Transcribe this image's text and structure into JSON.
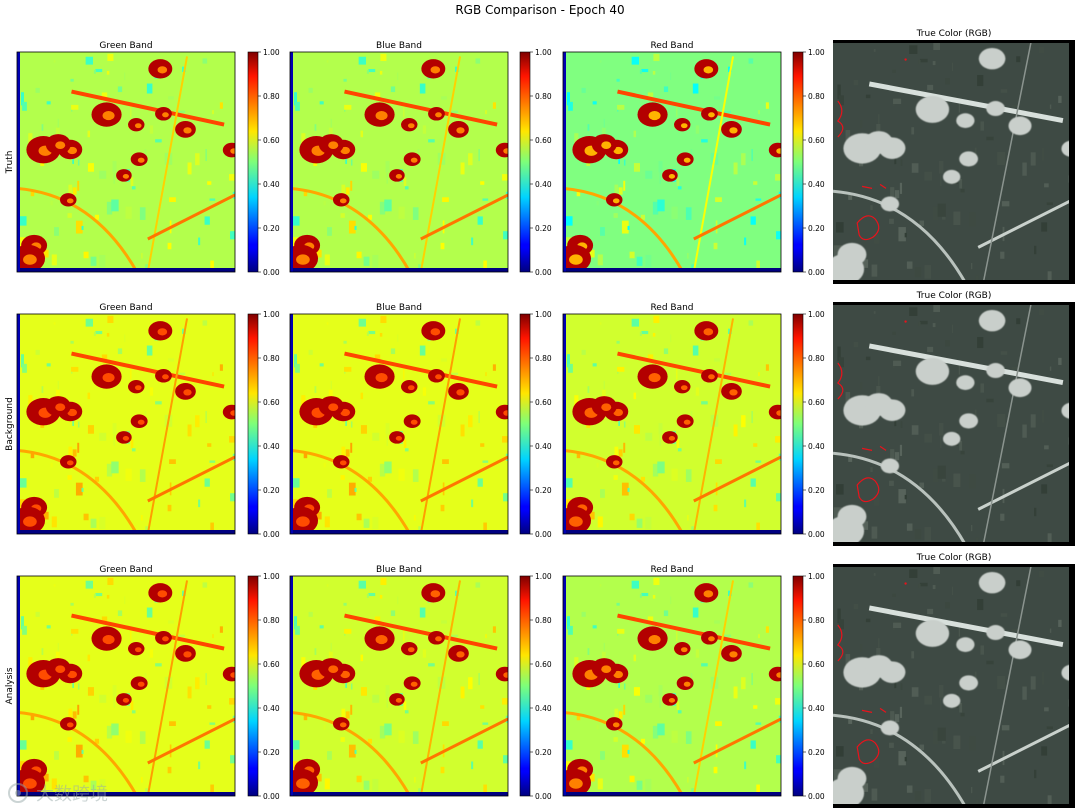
{
  "figure": {
    "title": "RGB Comparison - Epoch 40"
  },
  "chart_data": {
    "type": "heatmap",
    "title": "RGB Comparison - Epoch 40",
    "rows": [
      "Truth",
      "Background",
      "Analysis"
    ],
    "columns": [
      "Green Band",
      "Blue Band",
      "Red Band",
      "True Color (RGB)"
    ],
    "colormap": "jet",
    "colorbar": {
      "range": [
        0.0,
        1.0
      ],
      "ticks": [
        "0.00",
        "0.20",
        "0.40",
        "0.60",
        "0.80",
        "1.00"
      ]
    },
    "grid": false,
    "band_background_level": {
      "Truth": {
        "Green Band": 0.55,
        "Blue Band": 0.55,
        "Red Band": 0.5
      },
      "Background": {
        "Green Band": 0.6,
        "Blue Band": 0.6,
        "Red Band": 0.58
      },
      "Analysis": {
        "Green Band": 0.6,
        "Blue Band": 0.58,
        "Red Band": 0.55
      }
    },
    "high_value_level": 0.95
  },
  "colors": {
    "low": "#00007f",
    "mid": "#7fff7f",
    "high": "#7f0000",
    "rgb_overlay": "#e8131c"
  },
  "watermark": {
    "text": "大数跨境"
  }
}
